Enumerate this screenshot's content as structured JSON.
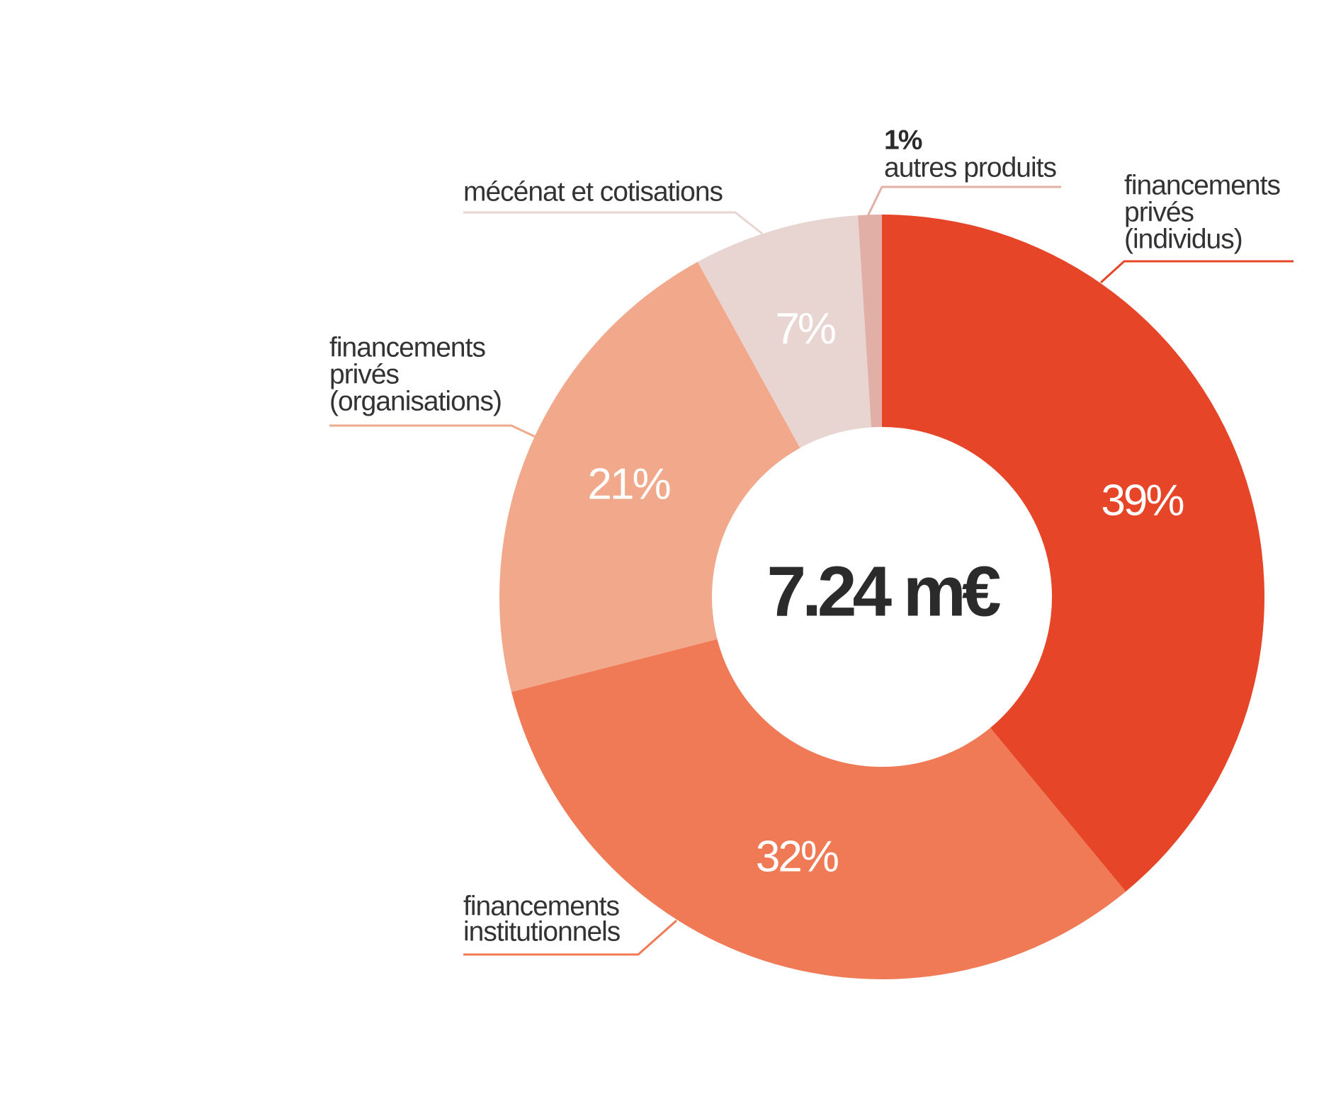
{
  "chart_data": {
    "type": "donut",
    "center_label": "7.24 m€",
    "categories": [
      [
        "financements",
        "privés",
        "(individus)"
      ],
      [
        "financements",
        "institutionnels"
      ],
      [
        "financements",
        "privés",
        "(organisations)"
      ],
      [
        "mécénat et cotisations"
      ],
      [
        "autres produits"
      ]
    ],
    "values": [
      39,
      32,
      21,
      7,
      1
    ],
    "value_labels": [
      "39%",
      "32%",
      "21%",
      "7%",
      "1%"
    ],
    "colors": [
      "#e64527",
      "#ef7a55",
      "#f2a88a",
      "#e8d5d1",
      "#e2afa6"
    ]
  }
}
